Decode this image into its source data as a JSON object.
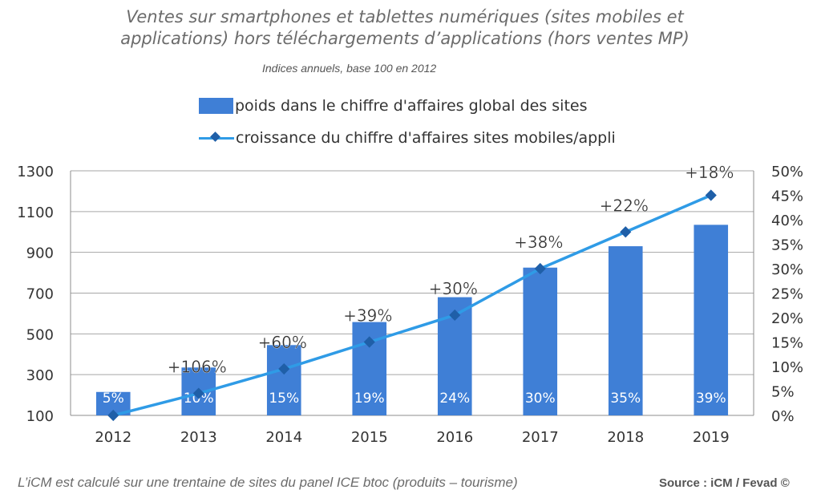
{
  "chart_data": {
    "type": "bar",
    "title_line1": "Ventes sur smartphones et tablettes numériques (sites mobiles et",
    "title_line2": "applications) hors téléchargements d’applications (hors ventes MP)",
    "subtitle": "Indices annuels, base 100 en 2012",
    "categories": [
      "2012",
      "2013",
      "2014",
      "2015",
      "2016",
      "2017",
      "2018",
      "2019"
    ],
    "series": [
      {
        "name": "poids dans le chiffre d'affaires global des sites",
        "type": "bar",
        "axis": "left",
        "color": "#3f7fd6",
        "values": [
          215,
          335,
          445,
          558,
          680,
          825,
          930,
          1035
        ],
        "data_labels": [
          "5%",
          "10%",
          "15%",
          "19%",
          "24%",
          "30%",
          "35%",
          "39%"
        ]
      },
      {
        "name": "croissance du chiffre d'affaires sites mobiles/appli",
        "type": "line",
        "axis": "right",
        "color": "#2f9be6",
        "marker_color": "#1f5fa8",
        "values": [
          0,
          4.5,
          9.5,
          15,
          20.5,
          30,
          37.5,
          45
        ],
        "data_labels": [
          "",
          "+106%",
          "+60%",
          "+39%",
          "+30%",
          "+38%",
          "+22%",
          "+18%"
        ]
      }
    ],
    "y_left": {
      "ticks": [
        "1300",
        "1100",
        "900",
        "700",
        "500",
        "300",
        "100"
      ],
      "ylim": [
        100,
        1300
      ]
    },
    "y_right": {
      "ticks": [
        "50%",
        "45%",
        "40%",
        "35%",
        "30%",
        "25%",
        "20%",
        "15%",
        "10%",
        "5%",
        "0%"
      ],
      "ylim": [
        0,
        50
      ]
    },
    "grid": true,
    "legend_position": "top",
    "footer": "L’iCM est calculé sur une trentaine de sites du panel ICE btoc (produits – tourisme)",
    "source": "Source : iCM / Fevad ©"
  }
}
